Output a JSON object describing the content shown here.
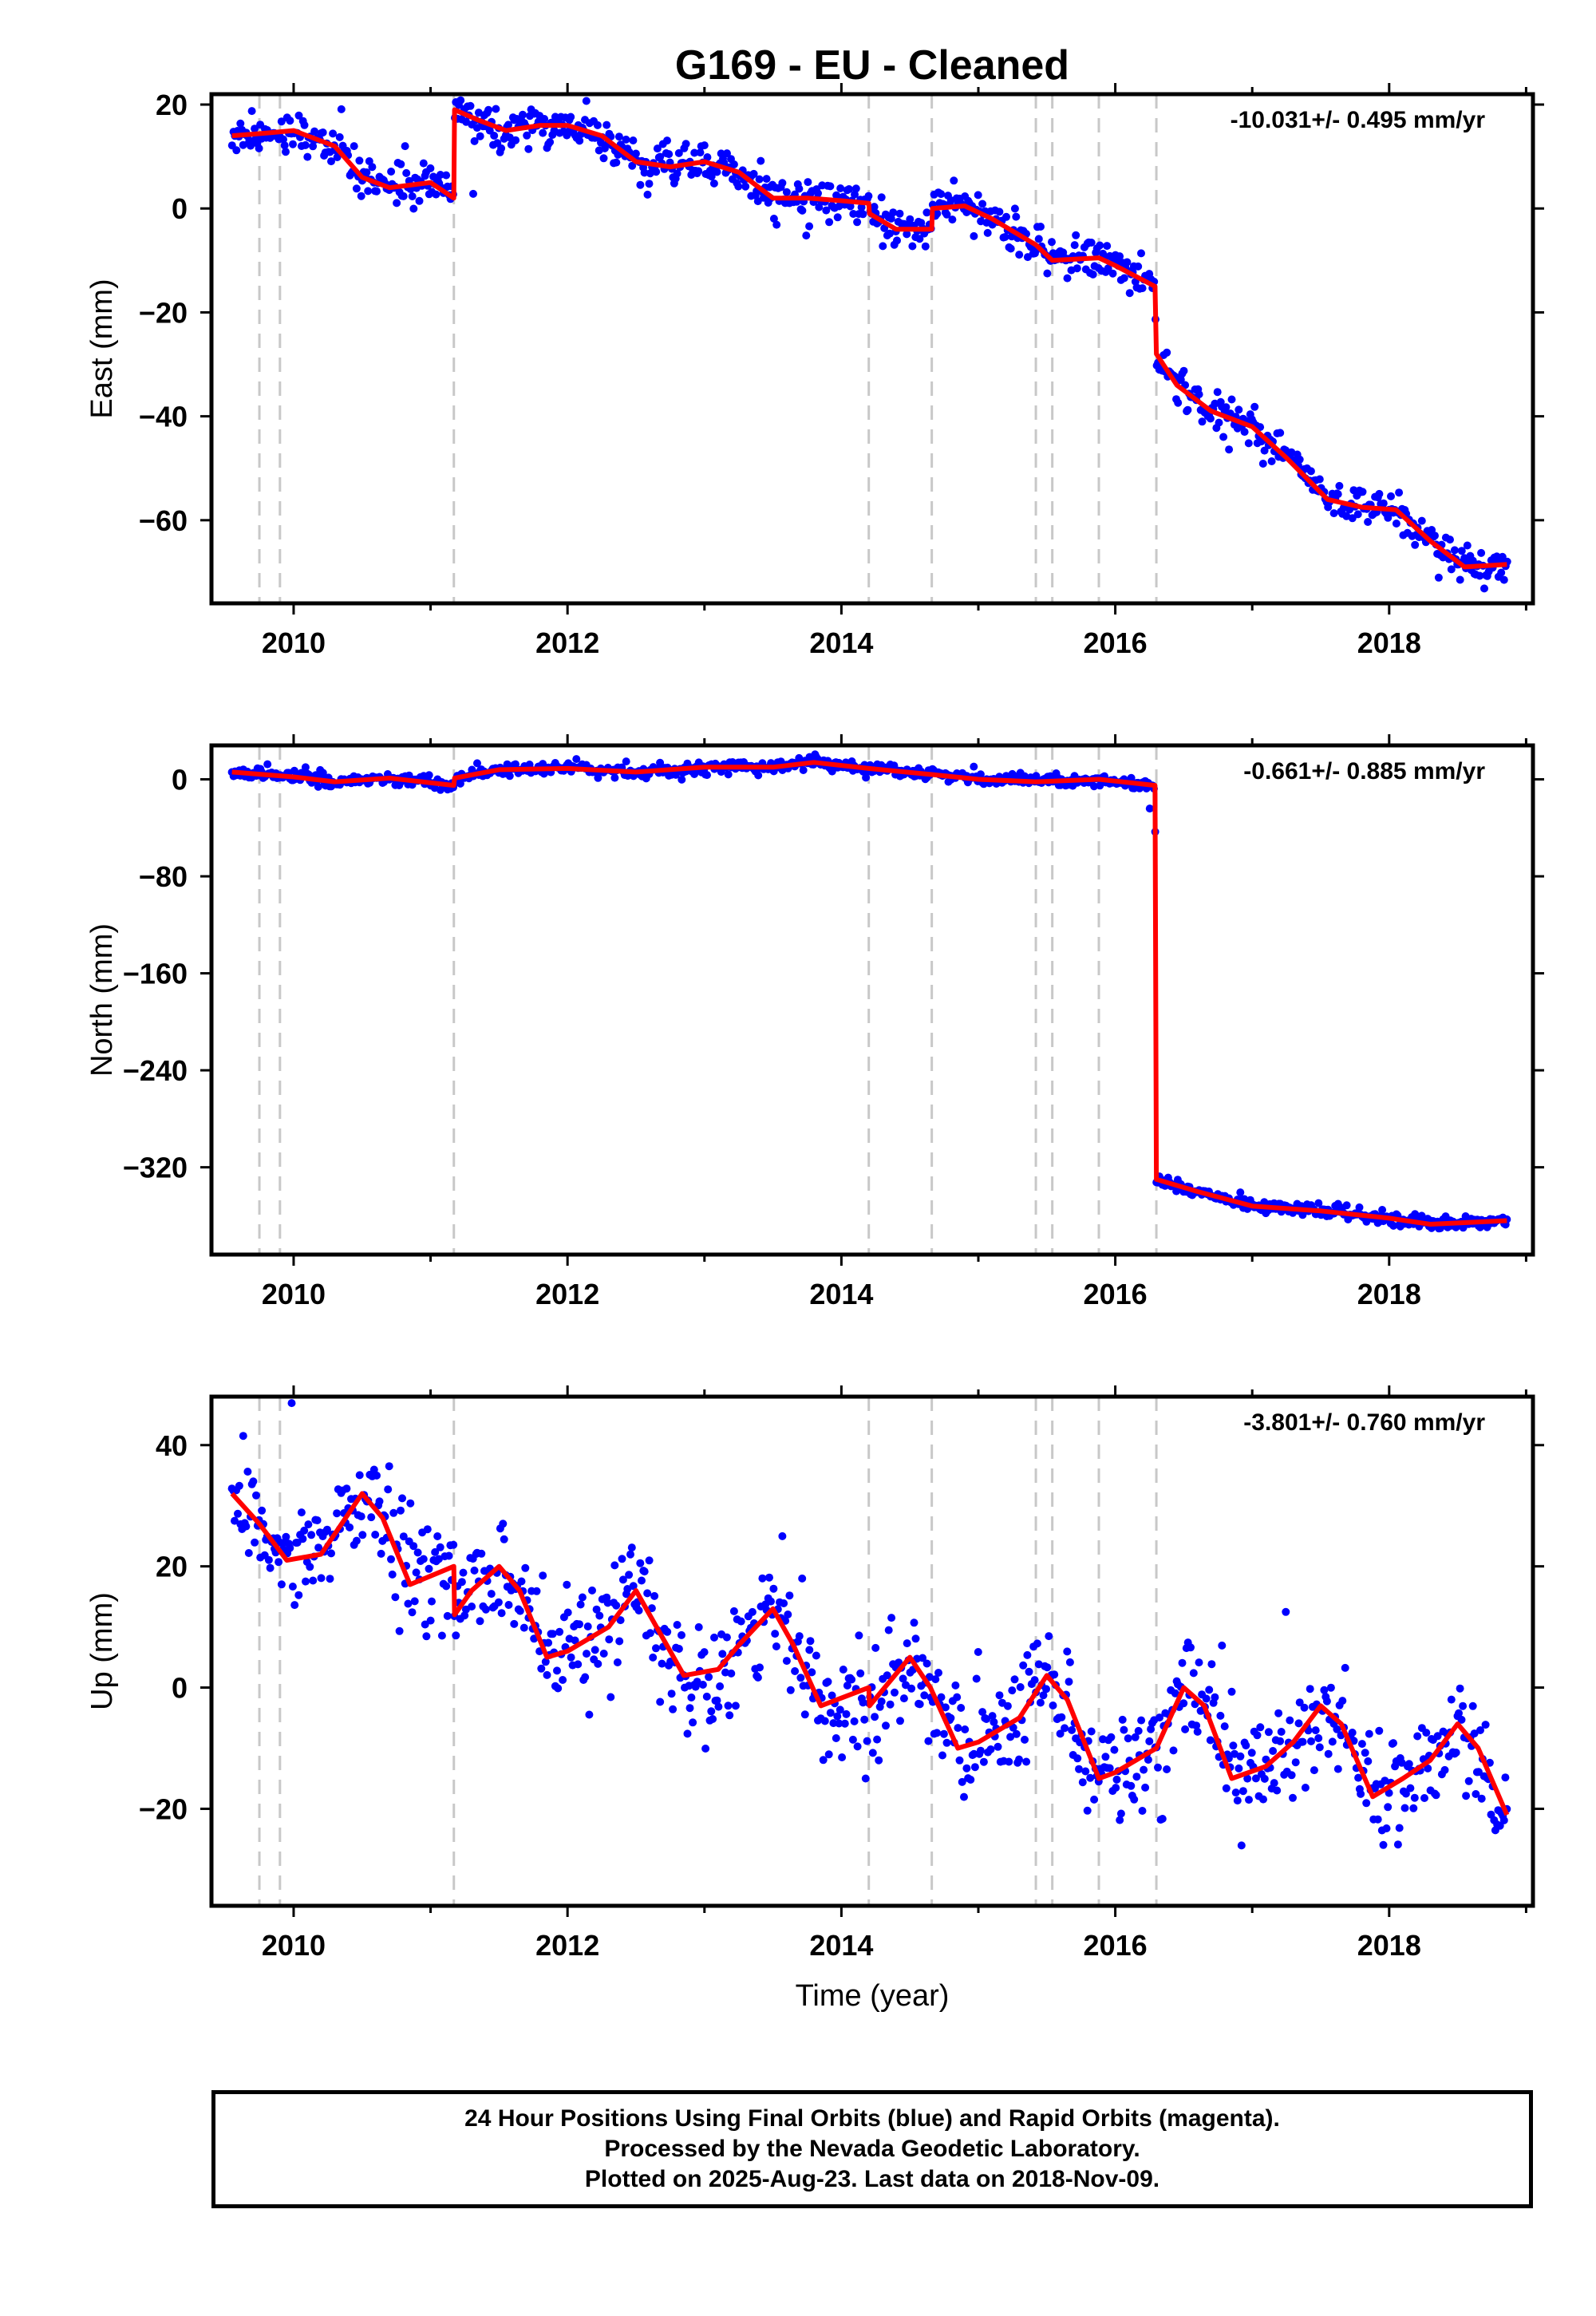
{
  "title": "G169  - EU - Cleaned",
  "xlabel": "Time (year)",
  "x_ticks": [
    "2010",
    "2012",
    "2014",
    "2016",
    "2018"
  ],
  "colors": {
    "points": "#0000ff",
    "model": "#ff0000",
    "breaks": "#c8c8c8"
  },
  "footer": [
    "24 Hour Positions Using Final Orbits (blue) and Rapid Orbits (magenta).",
    "Processed by the Nevada Geodetic Laboratory.",
    "Plotted on 2025-Aug-23. Last data on 2018-Nov-09."
  ],
  "chart_data": [
    {
      "type": "scatter",
      "ylabel": "East (mm)",
      "rate": "-10.031+/- 0.495 mm/yr",
      "xlim": [
        2009.4,
        2019.05
      ],
      "ylim": [
        -76,
        22
      ],
      "yticks": [
        20,
        0,
        -20,
        -40,
        -60
      ],
      "xdata_range": [
        2009.55,
        2018.86
      ],
      "breaks": [
        2009.75,
        2009.9,
        2011.17,
        2014.2,
        2014.66,
        2015.42,
        2015.54,
        2015.88,
        2016.3
      ],
      "model": [
        [
          2009.55,
          14
        ],
        [
          2009.8,
          14.5
        ],
        [
          2010.0,
          15
        ],
        [
          2010.3,
          12
        ],
        [
          2010.5,
          6
        ],
        [
          2010.7,
          4
        ],
        [
          2011.0,
          5
        ],
        [
          2011.17,
          2
        ],
        [
          2011.175,
          19
        ],
        [
          2011.35,
          17
        ],
        [
          2011.55,
          15
        ],
        [
          2011.8,
          16
        ],
        [
          2012.0,
          16
        ],
        [
          2012.25,
          14
        ],
        [
          2012.5,
          9
        ],
        [
          2012.75,
          8
        ],
        [
          2013.0,
          9
        ],
        [
          2013.25,
          7
        ],
        [
          2013.5,
          2
        ],
        [
          2013.75,
          2
        ],
        [
          2014.0,
          1.5
        ],
        [
          2014.2,
          1
        ],
        [
          2014.205,
          -1
        ],
        [
          2014.4,
          -4
        ],
        [
          2014.66,
          -4
        ],
        [
          2014.665,
          0
        ],
        [
          2014.9,
          0.5
        ],
        [
          2015.1,
          -2
        ],
        [
          2015.42,
          -7
        ],
        [
          2015.54,
          -10
        ],
        [
          2015.88,
          -9.5
        ],
        [
          2016.0,
          -11
        ],
        [
          2016.29,
          -15
        ],
        [
          2016.3,
          -28
        ],
        [
          2016.45,
          -34
        ],
        [
          2016.7,
          -39
        ],
        [
          2017.0,
          -42
        ],
        [
          2017.25,
          -48
        ],
        [
          2017.55,
          -56
        ],
        [
          2017.8,
          -57.5
        ],
        [
          2018.05,
          -58
        ],
        [
          2018.3,
          -64
        ],
        [
          2018.55,
          -69
        ],
        [
          2018.86,
          -68.5
        ]
      ],
      "noise": 1.8
    },
    {
      "type": "scatter",
      "ylabel": "North (mm)",
      "rate": "-0.661+/- 0.885 mm/yr",
      "xlim": [
        2009.4,
        2019.05
      ],
      "ylim": [
        -392,
        28
      ],
      "yticks": [
        0,
        -80,
        -160,
        -240,
        -320
      ],
      "xdata_range": [
        2009.55,
        2018.86
      ],
      "breaks": [
        2009.75,
        2009.9,
        2011.17,
        2014.2,
        2014.66,
        2015.42,
        2015.54,
        2015.88,
        2016.3
      ],
      "model": [
        [
          2009.55,
          6
        ],
        [
          2010.0,
          2
        ],
        [
          2010.3,
          -2
        ],
        [
          2010.7,
          1
        ],
        [
          2011.17,
          -5
        ],
        [
          2011.175,
          1
        ],
        [
          2011.5,
          8
        ],
        [
          2012.0,
          9
        ],
        [
          2012.5,
          6
        ],
        [
          2013.0,
          10
        ],
        [
          2013.5,
          10
        ],
        [
          2013.8,
          14
        ],
        [
          2014.2,
          9
        ],
        [
          2014.66,
          4
        ],
        [
          2015.0,
          0
        ],
        [
          2015.42,
          -2
        ],
        [
          2015.88,
          0
        ],
        [
          2016.29,
          -5
        ],
        [
          2016.3,
          -330
        ],
        [
          2016.6,
          -340
        ],
        [
          2017.0,
          -352
        ],
        [
          2017.5,
          -356
        ],
        [
          2018.0,
          -362
        ],
        [
          2018.3,
          -367
        ],
        [
          2018.86,
          -364
        ]
      ],
      "noise": 2.5
    },
    {
      "type": "scatter",
      "ylabel": "Up (mm)",
      "rate": "-3.801+/- 0.760 mm/yr",
      "xlim": [
        2009.4,
        2019.05
      ],
      "ylim": [
        -36,
        48
      ],
      "yticks": [
        40,
        20,
        0,
        -20
      ],
      "xdata_range": [
        2009.55,
        2018.86
      ],
      "breaks": [
        2009.75,
        2009.9,
        2011.17,
        2014.2,
        2014.66,
        2015.42,
        2015.54,
        2015.88,
        2016.3
      ],
      "model": [
        [
          2009.55,
          32
        ],
        [
          2009.75,
          27
        ],
        [
          2009.95,
          21
        ],
        [
          2010.2,
          22
        ],
        [
          2010.5,
          32
        ],
        [
          2010.65,
          28
        ],
        [
          2010.85,
          17
        ],
        [
          2011.17,
          20
        ],
        [
          2011.175,
          12
        ],
        [
          2011.3,
          16
        ],
        [
          2011.5,
          20
        ],
        [
          2011.65,
          16
        ],
        [
          2011.85,
          5
        ],
        [
          2012.0,
          6
        ],
        [
          2012.3,
          10
        ],
        [
          2012.5,
          16
        ],
        [
          2012.65,
          10
        ],
        [
          2012.85,
          2
        ],
        [
          2013.1,
          3
        ],
        [
          2013.25,
          7
        ],
        [
          2013.5,
          13
        ],
        [
          2013.65,
          7
        ],
        [
          2013.85,
          -3
        ],
        [
          2014.2,
          0
        ],
        [
          2014.205,
          -3
        ],
        [
          2014.5,
          5
        ],
        [
          2014.65,
          0
        ],
        [
          2014.85,
          -10
        ],
        [
          2015.0,
          -9
        ],
        [
          2015.3,
          -5
        ],
        [
          2015.5,
          2
        ],
        [
          2015.65,
          -2
        ],
        [
          2015.88,
          -15
        ],
        [
          2016.0,
          -14
        ],
        [
          2016.3,
          -10
        ],
        [
          2016.5,
          0
        ],
        [
          2016.65,
          -3
        ],
        [
          2016.85,
          -15
        ],
        [
          2017.1,
          -13
        ],
        [
          2017.3,
          -9
        ],
        [
          2017.5,
          -3
        ],
        [
          2017.65,
          -6
        ],
        [
          2017.88,
          -18
        ],
        [
          2018.1,
          -15
        ],
        [
          2018.3,
          -12
        ],
        [
          2018.5,
          -6
        ],
        [
          2018.65,
          -10
        ],
        [
          2018.86,
          -21
        ]
      ],
      "noise": 4.5
    }
  ]
}
